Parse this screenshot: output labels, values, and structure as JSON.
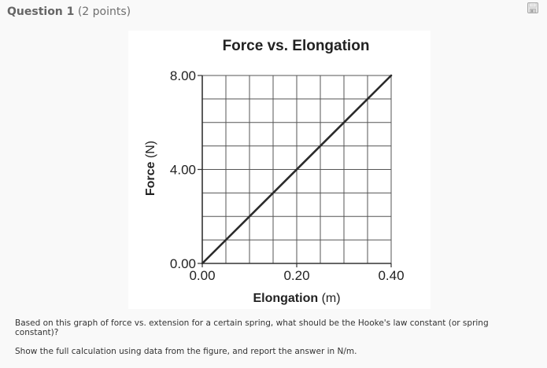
{
  "question": {
    "title": "Question 1",
    "points": "(2 points)",
    "save_icon": "floppy-disk-icon",
    "paragraphs": [
      "Based on this graph of force vs. extension for a certain spring, what should be the Hooke's law constant (or spring constant)?",
      "Show the full calculation using data from the figure, and report the answer in N/m."
    ]
  },
  "chart_data": {
    "type": "line",
    "title": "Force vs. Elongation",
    "xlabel": "Elongation",
    "xlabel_unit": "(m)",
    "ylabel": "Force",
    "ylabel_unit": "(N)",
    "xlim": [
      0.0,
      0.4
    ],
    "ylim": [
      0.0,
      8.0
    ],
    "x_ticks": [
      "0.00",
      "0.20",
      "0.40"
    ],
    "y_ticks": [
      "0.00",
      "4.00",
      "8.00"
    ],
    "grid": true,
    "grid_divisions": {
      "x": 8,
      "y": 8
    },
    "legend": null,
    "series": [
      {
        "name": "Force vs. Elongation",
        "x": [
          0.0,
          0.05,
          0.1,
          0.15,
          0.2,
          0.25,
          0.3,
          0.35,
          0.4
        ],
        "y": [
          0.0,
          1.0,
          2.0,
          3.0,
          4.0,
          5.0,
          6.0,
          7.0,
          8.0
        ],
        "color": "#2b2b2b"
      }
    ]
  }
}
